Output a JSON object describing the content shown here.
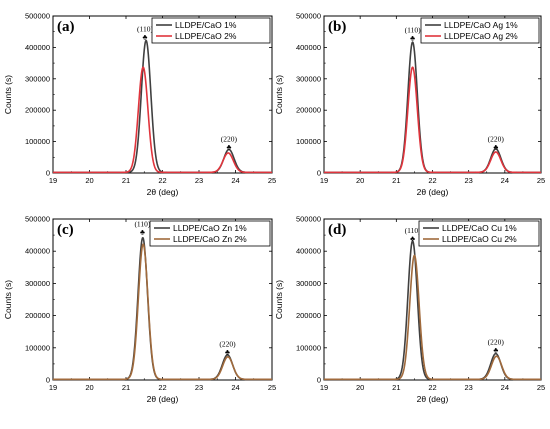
{
  "chart_data": [
    {
      "type": "line",
      "panel_label": "(a)",
      "xlabel": "2θ (deg)",
      "ylabel": "Counts (s)",
      "xlim": [
        19,
        25
      ],
      "ylim": [
        0,
        500000
      ],
      "xticks": [
        19,
        20,
        21,
        22,
        23,
        24,
        25
      ],
      "yticks": [
        0,
        100000,
        200000,
        300000,
        400000,
        500000
      ],
      "annotations": [
        {
          "text": "(110)",
          "x": 21.52,
          "y": 428000
        },
        {
          "text": "(220)",
          "x": 23.82,
          "y": 78000
        }
      ],
      "legend": "top-right",
      "series": [
        {
          "name": "LLDPE/CaO 1%",
          "color": "#404040",
          "peaks": [
            {
              "center": 21.55,
              "height": 420000,
              "sigma": 0.13
            },
            {
              "center": 23.82,
              "height": 73000,
              "sigma": 0.14
            }
          ]
        },
        {
          "name": "LLDPE/CaO 2%",
          "color": "#e0343c",
          "peaks": [
            {
              "center": 21.47,
              "height": 335000,
              "sigma": 0.13
            },
            {
              "center": 23.8,
              "height": 62000,
              "sigma": 0.14
            }
          ]
        }
      ]
    },
    {
      "type": "line",
      "panel_label": "(b)",
      "xlabel": "2θ (deg)",
      "ylabel": "Counts (s)",
      "xlim": [
        19,
        25
      ],
      "ylim": [
        0,
        500000
      ],
      "xticks": [
        19,
        20,
        21,
        22,
        23,
        24,
        25
      ],
      "yticks": [
        0,
        100000,
        200000,
        300000,
        400000,
        500000
      ],
      "annotations": [
        {
          "text": "(110)",
          "x": 21.45,
          "y": 425000
        },
        {
          "text": "(220)",
          "x": 23.75,
          "y": 78000
        }
      ],
      "legend": "top-right",
      "series": [
        {
          "name": "LLDPE/CaO Ag 1%",
          "color": "#404040",
          "peaks": [
            {
              "center": 21.45,
              "height": 415000,
              "sigma": 0.13
            },
            {
              "center": 23.75,
              "height": 75000,
              "sigma": 0.14
            }
          ]
        },
        {
          "name": "LLDPE/CaO Ag 2%",
          "color": "#e0343c",
          "peaks": [
            {
              "center": 21.45,
              "height": 335000,
              "sigma": 0.13
            },
            {
              "center": 23.75,
              "height": 65000,
              "sigma": 0.14
            }
          ]
        }
      ]
    },
    {
      "type": "line",
      "panel_label": "(c)",
      "xlabel": "2θ (deg)",
      "ylabel": "Counts (s)",
      "xlim": [
        19,
        25
      ],
      "ylim": [
        0,
        500000
      ],
      "xticks": [
        19,
        20,
        21,
        22,
        23,
        24,
        25
      ],
      "yticks": [
        0,
        100000,
        200000,
        300000,
        400000,
        500000
      ],
      "annotations": [
        {
          "text": "(110)",
          "x": 21.45,
          "y": 455000
        },
        {
          "text": "(220)",
          "x": 23.78,
          "y": 82000
        }
      ],
      "legend": "top-right",
      "series": [
        {
          "name": "LLDPE/CaO Zn 1%",
          "color": "#404040",
          "peaks": [
            {
              "center": 21.46,
              "height": 440000,
              "sigma": 0.13
            },
            {
              "center": 23.78,
              "height": 76000,
              "sigma": 0.14
            }
          ]
        },
        {
          "name": "LLDPE/CaO Zn 2%",
          "color": "#a06a3c",
          "peaks": [
            {
              "center": 21.47,
              "height": 420000,
              "sigma": 0.13
            },
            {
              "center": 23.79,
              "height": 70000,
              "sigma": 0.14
            }
          ]
        }
      ]
    },
    {
      "type": "line",
      "panel_label": "(d)",
      "xlabel": "2θ (deg)",
      "ylabel": "Counts (s)",
      "xlim": [
        19,
        25
      ],
      "ylim": [
        0,
        500000
      ],
      "xticks": [
        19,
        20,
        21,
        22,
        23,
        24,
        25
      ],
      "yticks": [
        0,
        100000,
        200000,
        300000,
        400000,
        500000
      ],
      "annotations": [
        {
          "text": "(110)",
          "x": 21.45,
          "y": 435000
        },
        {
          "text": "(220)",
          "x": 23.75,
          "y": 88000
        }
      ],
      "legend": "top-right",
      "series": [
        {
          "name": "LLDPE/CaO Cu 1%",
          "color": "#404040",
          "peaks": [
            {
              "center": 21.45,
              "height": 430000,
              "sigma": 0.13
            },
            {
              "center": 23.75,
              "height": 80000,
              "sigma": 0.14
            }
          ]
        },
        {
          "name": "LLDPE/CaO Cu 2%",
          "color": "#a06a3c",
          "peaks": [
            {
              "center": 21.5,
              "height": 385000,
              "sigma": 0.13
            },
            {
              "center": 23.77,
              "height": 72000,
              "sigma": 0.14
            }
          ]
        }
      ]
    }
  ]
}
